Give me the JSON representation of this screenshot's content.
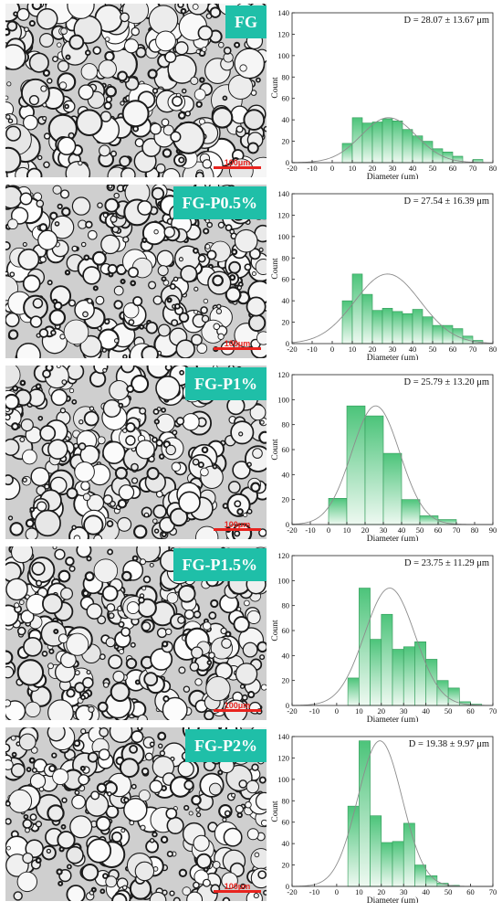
{
  "panels": [
    {
      "label": "FG",
      "scale_label": "100μm",
      "chart_data": {
        "type": "bar",
        "annotation": "D = 28.07 ± 13.67 μm",
        "xlabel": "Diameter (μm)",
        "ylabel": "Count",
        "xlim": [
          -20,
          80
        ],
        "ylim": [
          0,
          140
        ],
        "xticks": [
          -20,
          -10,
          0,
          10,
          20,
          30,
          40,
          50,
          60,
          70,
          80
        ],
        "yticks": [
          0,
          20,
          40,
          60,
          80,
          100,
          120,
          140
        ],
        "bin_edges": [
          5,
          10,
          15,
          20,
          25,
          30,
          35,
          40,
          45,
          50,
          55,
          60,
          65,
          70,
          75
        ],
        "counts": [
          18,
          42,
          37,
          38,
          41,
          39,
          31,
          25,
          20,
          13,
          10,
          6,
          0,
          3
        ],
        "fit": {
          "mean": 28.07,
          "sd": 13.67,
          "peak": 42
        }
      }
    },
    {
      "label": "FG-P0.5%",
      "scale_label": "100μm",
      "chart_data": {
        "type": "bar",
        "annotation": "D = 27.54 ± 16.39 μm",
        "xlabel": "Diameter (μm)",
        "ylabel": "Count",
        "xlim": [
          -20,
          80
        ],
        "ylim": [
          0,
          140
        ],
        "xticks": [
          -20,
          -10,
          0,
          10,
          20,
          30,
          40,
          50,
          60,
          70,
          80
        ],
        "yticks": [
          0,
          20,
          40,
          60,
          80,
          100,
          120,
          140
        ],
        "bin_edges": [
          5,
          10,
          15,
          20,
          25,
          30,
          35,
          40,
          45,
          50,
          55,
          60,
          65,
          70,
          75
        ],
        "counts": [
          40,
          65,
          46,
          31,
          33,
          30,
          28,
          32,
          25,
          17,
          17,
          14,
          7,
          3
        ],
        "fit": {
          "mean": 27.54,
          "sd": 16.39,
          "peak": 65
        }
      }
    },
    {
      "label": "FG-P1%",
      "scale_label": "100μm",
      "chart_data": {
        "type": "bar",
        "annotation": "D = 25.79 ± 13.20 μm",
        "xlabel": "Diameter (μm)",
        "ylabel": "Count",
        "xlim": [
          -20,
          90
        ],
        "ylim": [
          0,
          120
        ],
        "xticks": [
          -20,
          -10,
          0,
          10,
          20,
          30,
          40,
          50,
          60,
          70,
          80,
          90
        ],
        "yticks": [
          0,
          20,
          40,
          60,
          80,
          100,
          120
        ],
        "bin_edges": [
          0,
          10,
          20,
          30,
          40,
          50,
          60,
          70,
          80
        ],
        "counts": [
          21,
          95,
          87,
          57,
          20,
          7,
          4,
          0
        ],
        "fit": {
          "mean": 25.79,
          "sd": 13.2,
          "peak": 95
        }
      }
    },
    {
      "label": "FG-P1.5%",
      "scale_label": "100μm",
      "chart_data": {
        "type": "bar",
        "annotation": "D = 23.75 ± 11.29 μm",
        "xlabel": "Diameter (μm)",
        "ylabel": "Count",
        "xlim": [
          -20,
          70
        ],
        "ylim": [
          0,
          120
        ],
        "xticks": [
          -20,
          -10,
          0,
          10,
          20,
          30,
          40,
          50,
          60,
          70
        ],
        "yticks": [
          0,
          20,
          40,
          60,
          80,
          100,
          120
        ],
        "bin_edges": [
          5,
          10,
          15,
          20,
          25,
          30,
          35,
          40,
          45,
          50,
          55,
          60,
          65
        ],
        "counts": [
          22,
          94,
          53,
          73,
          45,
          47,
          51,
          37,
          20,
          14,
          3,
          1
        ],
        "fit": {
          "mean": 23.75,
          "sd": 11.29,
          "peak": 94
        }
      }
    },
    {
      "label": "FG-P2%",
      "scale_label": "100μm",
      "chart_data": {
        "type": "bar",
        "annotation": "D = 19.38 ± 9.97 μm",
        "xlabel": "Diameter (μm)",
        "ylabel": "Count",
        "xlim": [
          -20,
          70
        ],
        "ylim": [
          0,
          140
        ],
        "xticks": [
          -20,
          -10,
          0,
          10,
          20,
          30,
          40,
          50,
          60,
          70
        ],
        "yticks": [
          0,
          20,
          40,
          60,
          80,
          100,
          120,
          140
        ],
        "bin_edges": [
          5,
          10,
          15,
          20,
          25,
          30,
          35,
          40,
          45,
          50,
          55,
          60
        ],
        "counts": [
          75,
          136,
          66,
          41,
          42,
          59,
          20,
          10,
          3,
          1,
          0
        ],
        "fit": {
          "mean": 19.38,
          "sd": 9.97,
          "peak": 136
        }
      }
    }
  ],
  "colors": {
    "tag_bg": "#1fbfa8",
    "bar_top": "#4cc47a",
    "bar_bottom": "#eef9f1",
    "bar_edge": "#2f9a57",
    "fit_curve": "#8c8c8c",
    "scale_bar": "#e8231e"
  }
}
